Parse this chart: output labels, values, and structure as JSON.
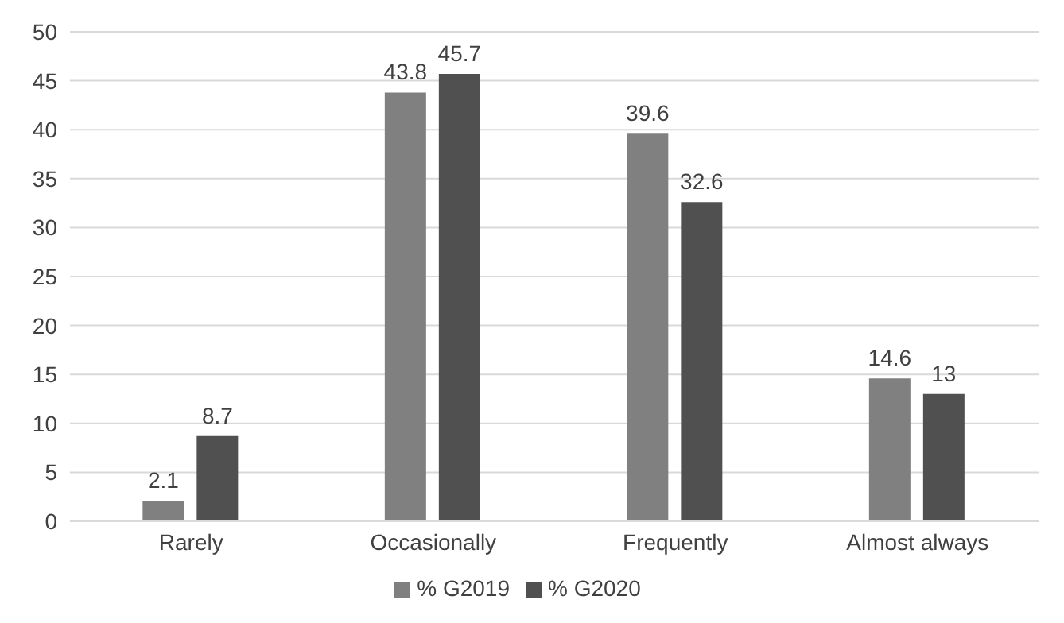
{
  "chart_data": {
    "type": "bar",
    "categories": [
      "Rarely",
      "Occasionally",
      "Frequently",
      "Almost always"
    ],
    "series": [
      {
        "name": "% G2019",
        "color": "#808080",
        "values": [
          2.1,
          43.8,
          39.6,
          14.6
        ]
      },
      {
        "name": "% G2020",
        "color": "#505050",
        "values": [
          8.7,
          45.7,
          32.6,
          13
        ]
      }
    ],
    "ylim": [
      0,
      50
    ],
    "yticks": [
      0,
      5,
      10,
      15,
      20,
      25,
      30,
      35,
      40,
      45,
      50
    ],
    "grid": "y",
    "legend": "bottom",
    "data_labels": true
  }
}
